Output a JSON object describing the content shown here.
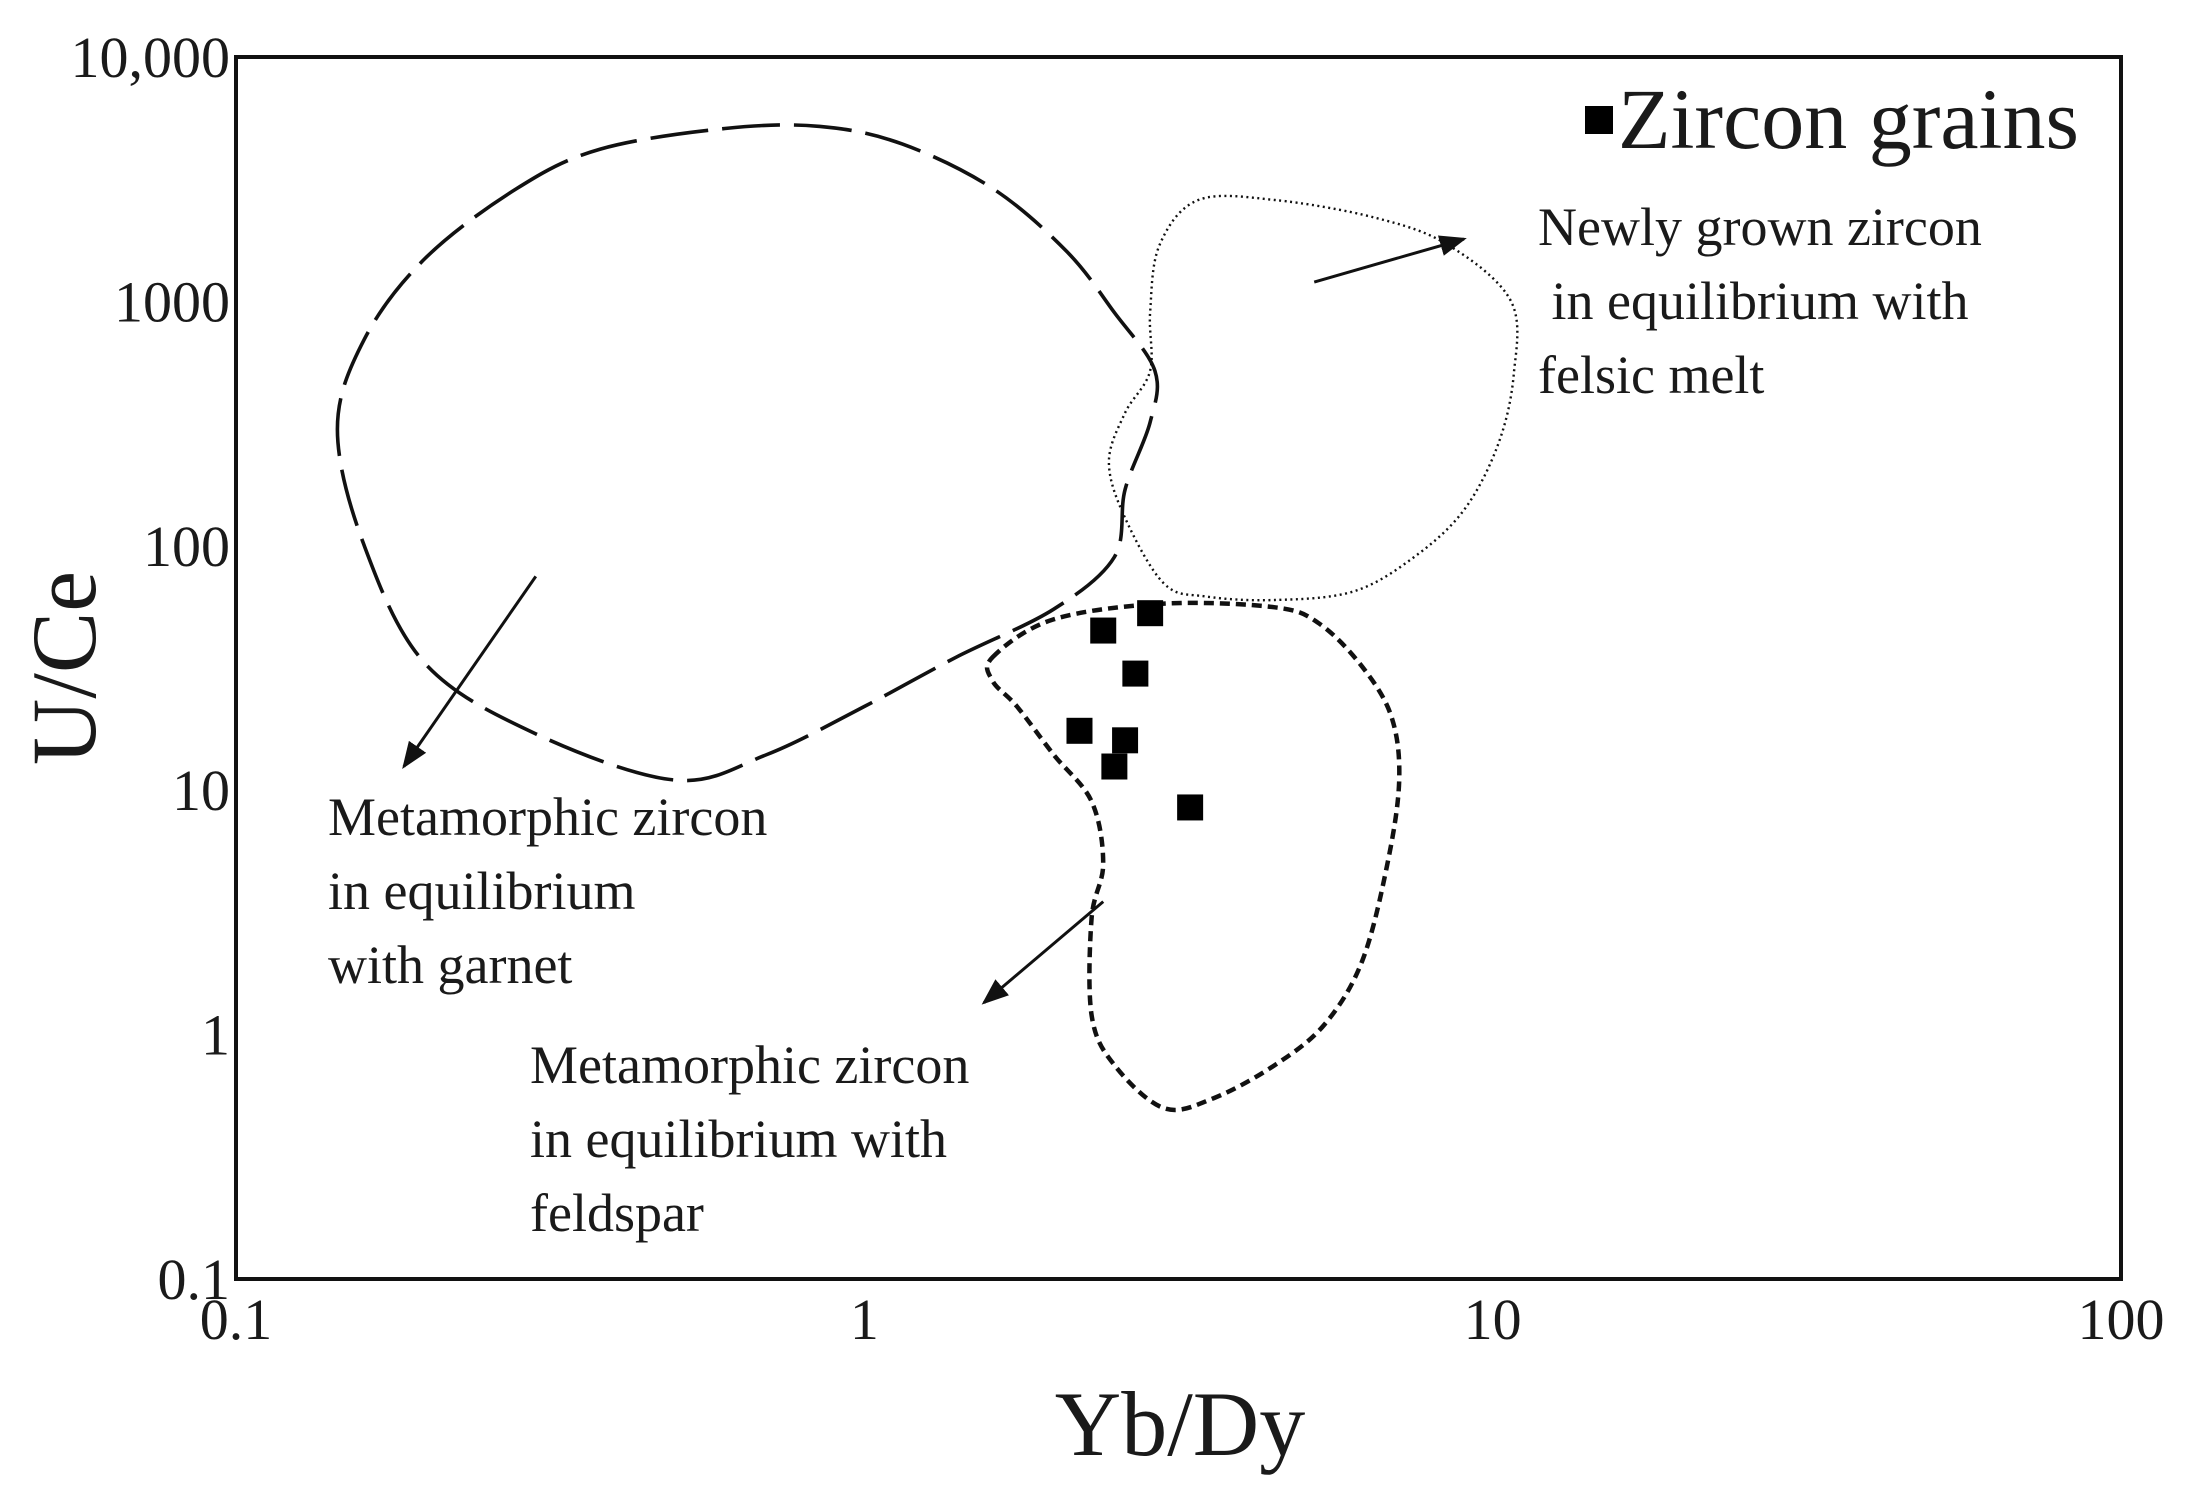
{
  "chart_data": {
    "type": "scatter",
    "xlabel": "Yb/Dy",
    "ylabel": "U/Ce",
    "xscale": "log",
    "yscale": "log",
    "xlim": [
      0.1,
      100
    ],
    "ylim": [
      0.1,
      10000
    ],
    "x_ticks": [
      {
        "value": 0.1,
        "label": "0.1"
      },
      {
        "value": 1,
        "label": "1"
      },
      {
        "value": 10,
        "label": "10"
      },
      {
        "value": 100,
        "label": "100"
      }
    ],
    "y_ticks": [
      {
        "value": 0.1,
        "label": "0.1"
      },
      {
        "value": 1,
        "label": "1"
      },
      {
        "value": 10,
        "label": "10"
      },
      {
        "value": 100,
        "label": "100"
      },
      {
        "value": 1000,
        "label": "1000"
      },
      {
        "value": 10000,
        "label": "10,000"
      }
    ],
    "grid": false,
    "legend": {
      "placement": "top-right",
      "entries": [
        {
          "marker": "square",
          "label": "Zircon grains"
        }
      ]
    },
    "series": [
      {
        "name": "Zircon grains",
        "marker": "filled-square",
        "color": "#000000",
        "points": [
          {
            "x": 2.4,
            "y": 45
          },
          {
            "x": 2.85,
            "y": 53
          },
          {
            "x": 2.7,
            "y": 30
          },
          {
            "x": 2.2,
            "y": 17.5
          },
          {
            "x": 2.6,
            "y": 16
          },
          {
            "x": 2.5,
            "y": 12.5
          },
          {
            "x": 3.3,
            "y": 8.5
          }
        ]
      }
    ],
    "regions": [
      {
        "label_lines": [
          "Metamorphic zircon",
          "in equilibrium",
          "with garnet"
        ],
        "line_style": "long-dash",
        "outline": [
          [
            0.28,
            2900
          ],
          [
            0.38,
            4200
          ],
          [
            0.6,
            5100
          ],
          [
            0.85,
            5200
          ],
          [
            1.15,
            4400
          ],
          [
            1.6,
            2900
          ],
          [
            2.1,
            1600
          ],
          [
            2.5,
            900
          ],
          [
            2.9,
            520
          ],
          [
            2.85,
            320
          ],
          [
            2.6,
            170
          ],
          [
            2.5,
            90
          ],
          [
            2.0,
            55
          ],
          [
            1.4,
            35
          ],
          [
            1.0,
            22
          ],
          [
            0.7,
            14
          ],
          [
            0.5,
            11
          ],
          [
            0.3,
            17
          ],
          [
            0.2,
            33
          ],
          [
            0.16,
            100
          ],
          [
            0.145,
            300
          ],
          [
            0.16,
            700
          ],
          [
            0.2,
            1500
          ]
        ],
        "arrow": {
          "from": [
            0.3,
            75
          ],
          "to": [
            0.185,
            12.5
          ]
        }
      },
      {
        "label_lines": [
          "Newly grown zircon",
          " in equilibrium with",
          "felsic melt"
        ],
        "line_style": "dotted",
        "outline": [
          [
            2.85,
            520
          ],
          [
            2.85,
            900
          ],
          [
            2.95,
            1700
          ],
          [
            3.4,
            2600
          ],
          [
            4.5,
            2600
          ],
          [
            6.5,
            2200
          ],
          [
            8.5,
            1700
          ],
          [
            10.7,
            1000
          ],
          [
            10.8,
            500
          ],
          [
            10.2,
            260
          ],
          [
            9.0,
            140
          ],
          [
            7.5,
            90
          ],
          [
            6.0,
            65
          ],
          [
            4.5,
            60
          ],
          [
            3.5,
            62
          ],
          [
            3.0,
            70
          ],
          [
            2.6,
            130
          ],
          [
            2.45,
            220
          ],
          [
            2.6,
            350
          ]
        ],
        "arrow": {
          "from": [
            5.2,
            1200
          ],
          "to": [
            9.0,
            1800
          ]
        }
      },
      {
        "label_lines": [
          "Metamorphic zircon",
          "in equilibrium with",
          "feldspar"
        ],
        "line_style": "short-dash",
        "outline": [
          [
            1.6,
            35
          ],
          [
            2.0,
            50
          ],
          [
            3.0,
            58
          ],
          [
            4.5,
            56
          ],
          [
            5.3,
            48
          ],
          [
            6.2,
            32
          ],
          [
            6.9,
            20
          ],
          [
            7.1,
            11
          ],
          [
            6.8,
            5
          ],
          [
            6.2,
            2
          ],
          [
            5.4,
            1.1
          ],
          [
            4.5,
            0.75
          ],
          [
            3.6,
            0.55
          ],
          [
            3.0,
            0.5
          ],
          [
            2.5,
            0.75
          ],
          [
            2.3,
            1.2
          ],
          [
            2.3,
            3
          ],
          [
            2.4,
            5
          ],
          [
            2.3,
            9
          ],
          [
            2.0,
            14
          ],
          [
            1.75,
            22
          ],
          [
            1.6,
            28
          ]
        ],
        "arrow": {
          "from": [
            2.4,
            3.5
          ],
          "to": [
            1.55,
            1.35
          ]
        }
      }
    ]
  }
}
